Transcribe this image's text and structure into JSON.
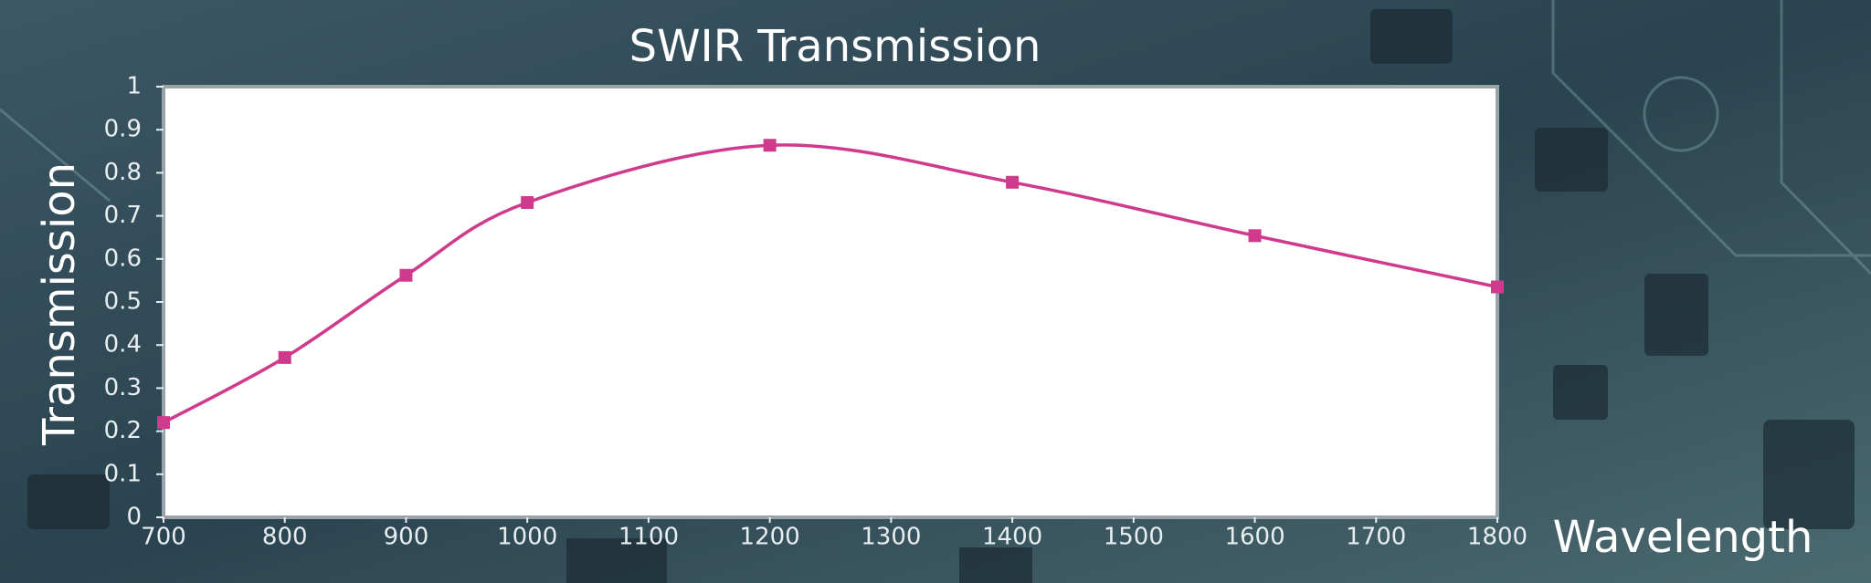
{
  "chart_data": {
    "type": "line",
    "title": "SWIR Transmission",
    "x_label": "Wavelength",
    "y_label": "Transmission",
    "x": [
      700,
      800,
      900,
      1000,
      1200,
      1400,
      1600,
      1800
    ],
    "series": [
      {
        "name": "Transmission",
        "color": "#cf3a8c",
        "values": [
          0.22,
          0.371,
          0.562,
          0.731,
          0.864,
          0.778,
          0.654,
          0.535
        ]
      }
    ],
    "xlim": [
      700,
      1800
    ],
    "xticks": [
      700,
      800,
      900,
      1000,
      1100,
      1200,
      1300,
      1400,
      1500,
      1600,
      1700,
      1800
    ],
    "ylim": [
      0,
      1
    ],
    "yticks": [
      0,
      0.1,
      0.2,
      0.3,
      0.4,
      0.5,
      0.6,
      0.7,
      0.8,
      0.9,
      1
    ],
    "smooth": true,
    "markers": "square",
    "legend": false
  }
}
